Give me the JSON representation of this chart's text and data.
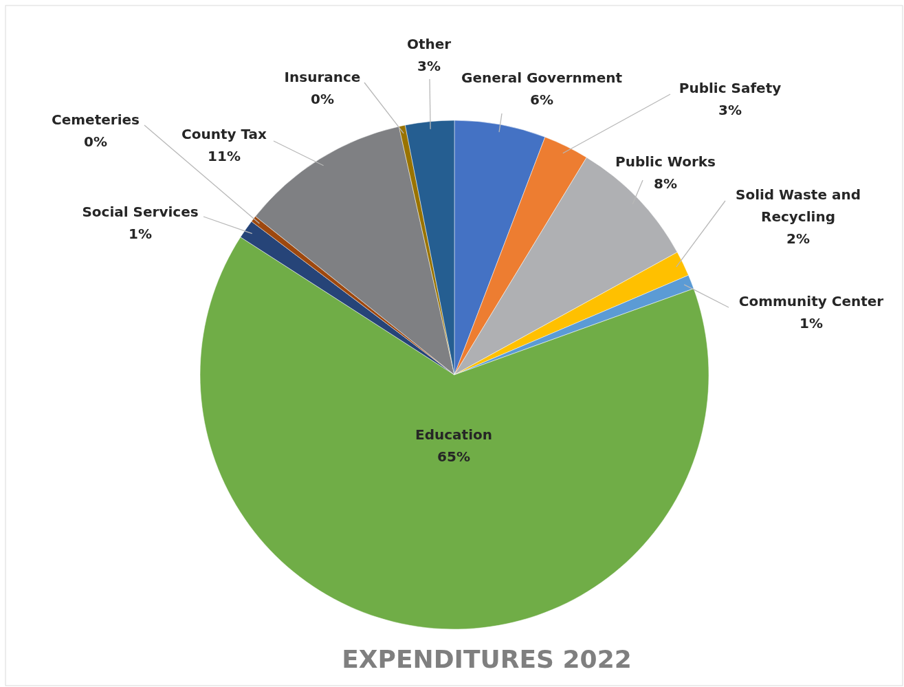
{
  "chart_data": {
    "type": "pie",
    "title": "EXPENDITURES 2022",
    "categories": [
      "General Government",
      "Public Safety",
      "Public Works",
      "Solid Waste and Recycling",
      "Community Center",
      "Education",
      "Social Services",
      "Cemeteries",
      "County Tax",
      "Insurance",
      "Other"
    ],
    "values": [
      5.8,
      2.9,
      8.3,
      1.6,
      0.9,
      64.6,
      1.2,
      0.4,
      10.8,
      0.4,
      3.1
    ],
    "value_labels": [
      "6%",
      "3%",
      "8%",
      "2%",
      "1%",
      "65%",
      "1%",
      "0%",
      "11%",
      "0%",
      "3%"
    ],
    "colors": [
      "#4472c4",
      "#ed7d31",
      "#afb0b3",
      "#ffc000",
      "#5b9bd5",
      "#70ad47",
      "#264478",
      "#9e480e",
      "#7f8083",
      "#997300",
      "#255e91"
    ]
  }
}
